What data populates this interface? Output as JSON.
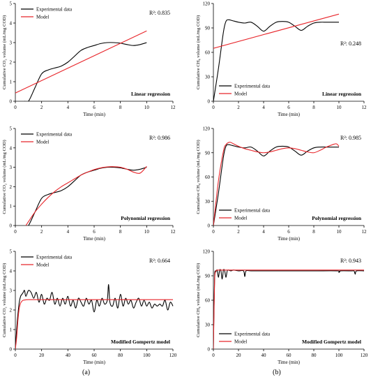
{
  "labels": {
    "a": "(a)",
    "b": "(b)"
  },
  "chart_data": [
    {
      "type": "line",
      "panel": "a-1",
      "xlabel": "Time (min)",
      "ylabel": "Cumulative CO₂ volume (mL/mg COD)",
      "xlim": [
        0,
        12
      ],
      "ylim": [
        0,
        5
      ],
      "xticks": [
        0,
        2,
        4,
        6,
        8,
        10,
        12
      ],
      "yticks": [
        0,
        1,
        2,
        3,
        4,
        5
      ],
      "legend": "top-left",
      "r2": "R²: 0.835",
      "method": "Linear regression",
      "series": [
        {
          "name": "Experimental data",
          "color": "#000000",
          "x": [
            0.7,
            1.0,
            1.5,
            2.0,
            2.5,
            3.0,
            3.5,
            4.0,
            4.5,
            5.0,
            5.5,
            6.0,
            6.5,
            7.0,
            7.5,
            8.0,
            8.5,
            9.0,
            9.5,
            10.0
          ],
          "y": [
            0.0,
            0.0,
            0.7,
            1.4,
            1.6,
            1.7,
            1.8,
            2.0,
            2.3,
            2.6,
            2.75,
            2.85,
            2.95,
            3.0,
            3.0,
            2.97,
            2.9,
            2.85,
            2.9,
            3.0
          ]
        },
        {
          "name": "Model",
          "color": "#e8262b",
          "x": [
            0,
            10
          ],
          "y": [
            0.42,
            3.6
          ]
        }
      ]
    },
    {
      "type": "line",
      "panel": "b-1",
      "xlabel": "Time (min)",
      "ylabel": "Cumulative CH₄ volume (mL/mg COD)",
      "xlim": [
        0,
        12
      ],
      "ylim": [
        0,
        120
      ],
      "xticks": [
        0,
        2,
        4,
        6,
        8,
        10,
        12
      ],
      "yticks": [
        0,
        30,
        60,
        90,
        120
      ],
      "legend": "bottom-left",
      "r2": "R²: 0.248",
      "method": "Linear regression",
      "series": [
        {
          "name": "Experimental data",
          "color": "#000000",
          "x": [
            0,
            0.4,
            0.8,
            1.0,
            1.2,
            1.5,
            2.0,
            2.5,
            3.0,
            3.5,
            4.0,
            4.5,
            5.0,
            5.5,
            6.0,
            6.5,
            7.0,
            7.5,
            8.0,
            8.5,
            9.0,
            9.5,
            10.0
          ],
          "y": [
            0,
            40,
            85,
            98,
            100,
            99,
            97,
            96,
            97,
            92,
            86,
            92,
            97,
            98,
            97,
            92,
            87,
            92,
            96,
            97,
            97,
            97,
            97
          ]
        },
        {
          "name": "Model",
          "color": "#e8262b",
          "x": [
            0,
            10
          ],
          "y": [
            65,
            107
          ]
        }
      ]
    },
    {
      "type": "line",
      "panel": "a-2",
      "xlabel": "Time (min)",
      "ylabel": "Cumulative CO₂ volume (mL/mg COD)",
      "xlim": [
        0,
        12
      ],
      "ylim": [
        0,
        5
      ],
      "xticks": [
        0,
        2,
        4,
        6,
        8,
        10,
        12
      ],
      "yticks": [
        0,
        1,
        2,
        3,
        4,
        5
      ],
      "legend": "top-left",
      "r2": "R²: 0.986",
      "method": "Polynomial regression",
      "series": [
        {
          "name": "Experimental data",
          "color": "#000000",
          "x": [
            0.8,
            1.0,
            1.5,
            2.0,
            2.5,
            3.0,
            3.5,
            4.0,
            4.5,
            5.0,
            5.5,
            6.0,
            6.5,
            7.0,
            7.5,
            8.0,
            8.5,
            9.0,
            9.5,
            10.0
          ],
          "y": [
            0.0,
            0.0,
            0.7,
            1.4,
            1.6,
            1.7,
            1.8,
            2.0,
            2.3,
            2.6,
            2.75,
            2.85,
            2.95,
            3.0,
            3.0,
            2.97,
            2.9,
            2.85,
            2.9,
            3.0
          ]
        },
        {
          "name": "Model",
          "color": "#e8262b",
          "x": [
            0.8,
            1.0,
            1.5,
            2.0,
            2.5,
            3.0,
            3.5,
            4.0,
            4.5,
            5.0,
            5.5,
            6.0,
            6.5,
            7.0,
            7.5,
            8.0,
            8.5,
            9.0,
            9.5,
            10.0
          ],
          "y": [
            0.0,
            0.2,
            0.7,
            1.1,
            1.45,
            1.75,
            2.0,
            2.2,
            2.4,
            2.6,
            2.75,
            2.88,
            2.97,
            3.02,
            3.03,
            3.0,
            2.9,
            2.75,
            2.7,
            3.05
          ]
        }
      ]
    },
    {
      "type": "line",
      "panel": "b-2",
      "xlabel": "Time (min)",
      "ylabel": "Cumulative CH₄ volume (mL/mg COD)",
      "xlim": [
        0,
        12
      ],
      "ylim": [
        0,
        120
      ],
      "xticks": [
        0,
        2,
        4,
        6,
        8,
        10,
        12
      ],
      "yticks": [
        0,
        30,
        60,
        90,
        120
      ],
      "legend": "bottom-left",
      "r2": "R²: 0.985",
      "method": "Polynomial regression",
      "series": [
        {
          "name": "Experimental data",
          "color": "#000000",
          "x": [
            0,
            0.4,
            0.8,
            1.0,
            1.2,
            1.5,
            2.0,
            2.5,
            3.0,
            3.5,
            4.0,
            4.5,
            5.0,
            5.5,
            6.0,
            6.5,
            7.0,
            7.5,
            8.0,
            8.5,
            9.0,
            9.5,
            10.0
          ],
          "y": [
            0,
            40,
            85,
            98,
            100,
            99,
            97,
            96,
            97,
            92,
            86,
            92,
            97,
            98,
            97,
            92,
            87,
            92,
            96,
            97,
            97,
            97,
            97
          ]
        },
        {
          "name": "Model",
          "color": "#e8262b",
          "x": [
            0,
            0.4,
            0.8,
            1.0,
            1.3,
            1.6,
            2.0,
            2.5,
            3.0,
            3.5,
            4.0,
            4.5,
            5.0,
            5.5,
            6.0,
            6.5,
            7.0,
            7.5,
            8.0,
            8.5,
            9.0,
            9.5,
            9.8,
            10.0
          ],
          "y": [
            0,
            55,
            92,
            100,
            103,
            101,
            98,
            95,
            93,
            91,
            90,
            91,
            93,
            95,
            96,
            95,
            93,
            91,
            90,
            93,
            97,
            100,
            101,
            98
          ]
        }
      ]
    },
    {
      "type": "line",
      "panel": "a-3",
      "xlabel": "Time (min)",
      "ylabel": "Cumulative CO₂ volume (mL/mg COD)",
      "xlim": [
        0,
        120
      ],
      "ylim": [
        0,
        5
      ],
      "xticks": [
        0,
        20,
        40,
        60,
        80,
        100,
        120
      ],
      "yticks": [
        0,
        1,
        2,
        3,
        4,
        5
      ],
      "legend": "top-left",
      "r2": "R²: 0.664",
      "method": "Modified Gompertz model",
      "series": [
        {
          "name": "Experimental data",
          "color": "#000000",
          "x": [
            0,
            1,
            2,
            3,
            4,
            5,
            6,
            7,
            8,
            10,
            12,
            14,
            16,
            18,
            20,
            22,
            24,
            26,
            28,
            30,
            32,
            34,
            36,
            38,
            40,
            42,
            44,
            46,
            48,
            50,
            52,
            54,
            56,
            58,
            60,
            62,
            64,
            66,
            68,
            70,
            71,
            72,
            74,
            76,
            78,
            80,
            82,
            84,
            86,
            88,
            90,
            92,
            94,
            96,
            98,
            100,
            102,
            104,
            106,
            108,
            110,
            112,
            114,
            116,
            118,
            120
          ],
          "y": [
            0,
            1.0,
            1.8,
            2.4,
            2.7,
            2.8,
            2.9,
            3.0,
            2.7,
            3.0,
            2.9,
            2.6,
            2.9,
            2.4,
            2.8,
            2.3,
            2.6,
            2.5,
            2.9,
            2.3,
            2.6,
            2.2,
            2.6,
            2.3,
            2.7,
            2.2,
            2.5,
            2.1,
            2.6,
            2.4,
            2.2,
            2.6,
            2.3,
            2.5,
            1.9,
            2.5,
            2.2,
            2.6,
            2.3,
            2.5,
            3.3,
            2.4,
            2.2,
            2.6,
            2.1,
            2.8,
            2.2,
            2.6,
            2.3,
            2.5,
            2.1,
            2.4,
            2.6,
            2.2,
            2.5,
            2.2,
            2.4,
            2.1,
            2.3,
            2.2,
            2.3,
            2.2,
            2.5,
            2.0,
            2.4,
            2.2
          ]
        },
        {
          "name": "Model",
          "color": "#e8262b",
          "x": [
            0,
            1,
            2,
            3,
            4,
            5,
            6,
            8,
            10,
            20,
            40,
            60,
            80,
            100,
            120
          ],
          "y": [
            0,
            0.6,
            1.5,
            2.1,
            2.35,
            2.45,
            2.5,
            2.52,
            2.53,
            2.53,
            2.53,
            2.53,
            2.53,
            2.53,
            2.53
          ]
        }
      ]
    },
    {
      "type": "line",
      "panel": "b-3",
      "xlabel": "Time (min)",
      "ylabel": "Cumulative CH₄ volume (mL/mg COD)",
      "xlim": [
        0,
        120
      ],
      "ylim": [
        0,
        120
      ],
      "xticks": [
        0,
        20,
        40,
        60,
        80,
        100,
        120
      ],
      "yticks": [
        0,
        30,
        60,
        90,
        120
      ],
      "legend": "bottom-left",
      "r2": "R²: 0.943",
      "method": "Modified Gompertz model",
      "series": [
        {
          "name": "Experimental data",
          "color": "#000000",
          "x": [
            0,
            0.5,
            1,
            1.5,
            2,
            3,
            4,
            5,
            6,
            7,
            8,
            9,
            10,
            11,
            12,
            14,
            16,
            20,
            24,
            25,
            26,
            30,
            40,
            60,
            80,
            99,
            100,
            101,
            110,
            112,
            113,
            114,
            120
          ],
          "y": [
            0,
            50,
            90,
            96,
            95,
            97,
            88,
            97,
            96,
            86,
            97,
            96,
            88,
            96,
            97,
            96,
            97,
            96,
            96,
            89,
            96,
            96,
            96,
            96,
            96,
            96,
            94,
            96,
            96,
            96,
            92,
            96,
            96
          ]
        },
        {
          "name": "Model",
          "color": "#e8262b",
          "x": [
            0,
            0.5,
            1,
            1.5,
            2,
            3,
            5,
            10,
            20,
            40,
            60,
            80,
            100,
            120
          ],
          "y": [
            0,
            45,
            85,
            94,
            96,
            97,
            97,
            97,
            97,
            97,
            97,
            97,
            97,
            97
          ]
        }
      ]
    }
  ]
}
